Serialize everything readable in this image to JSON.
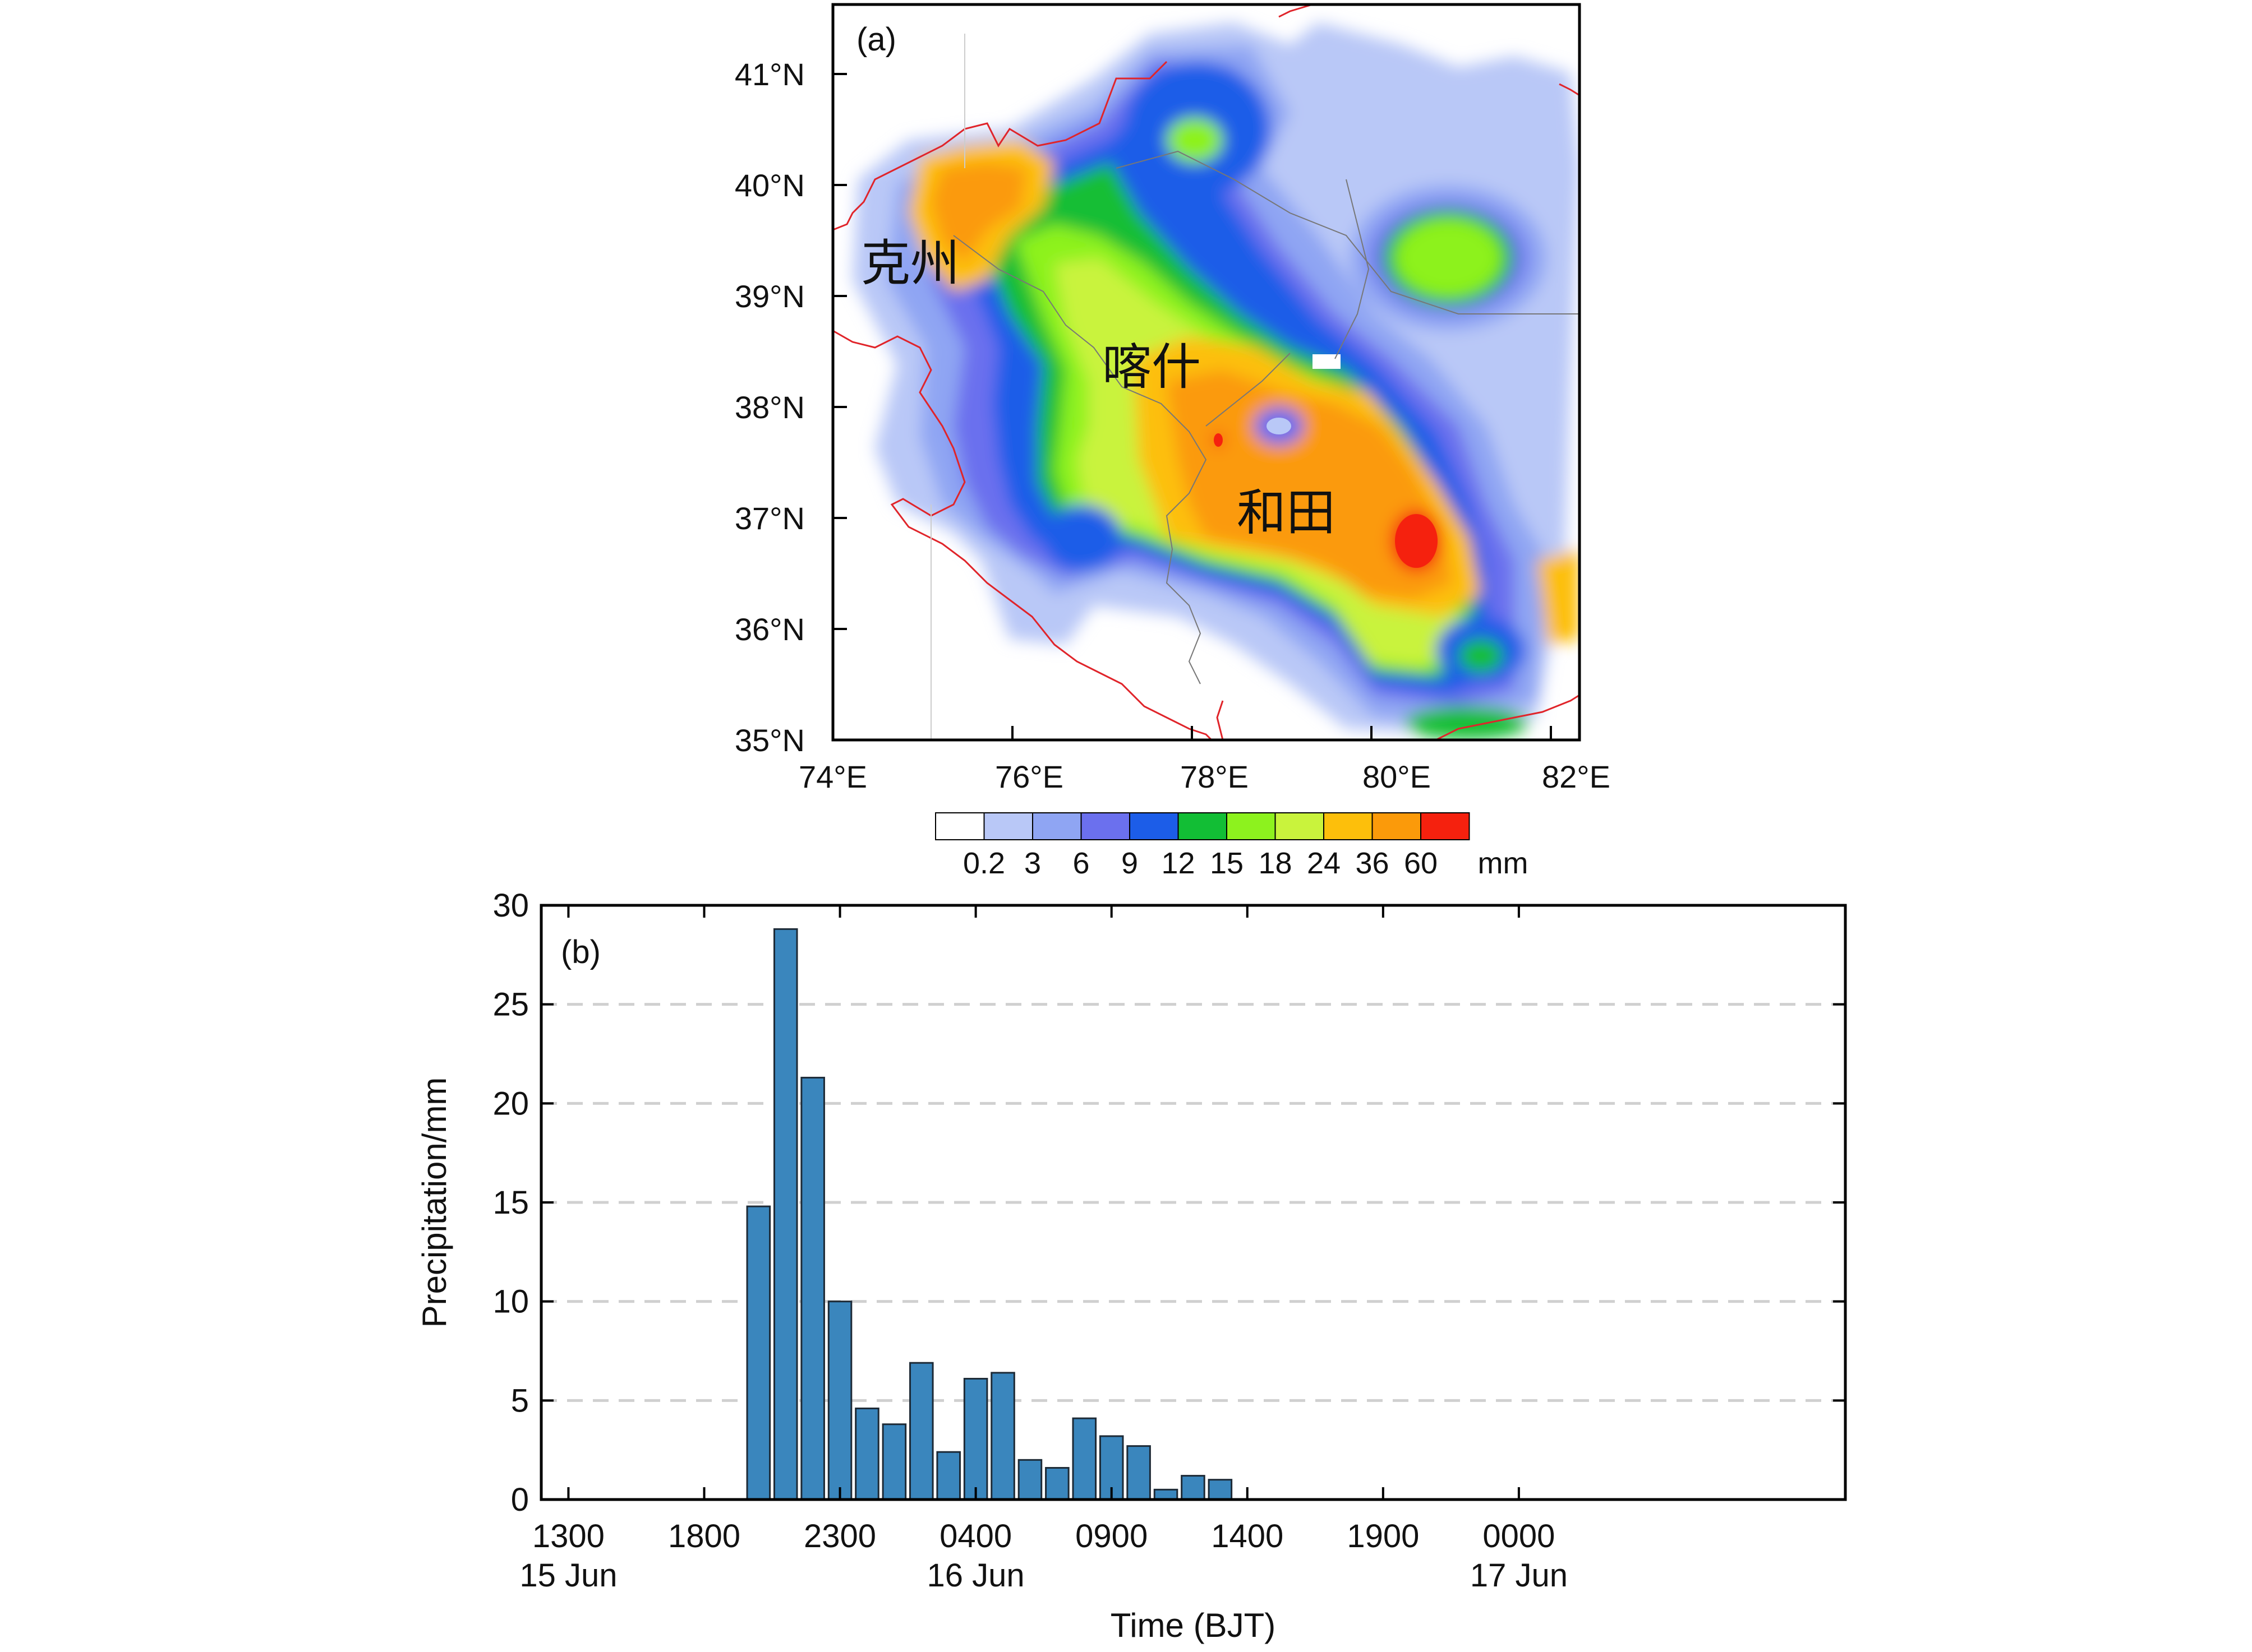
{
  "panel_a": {
    "label": "(a)",
    "lat_ticks": [
      "35°N",
      "36°N",
      "37°N",
      "38°N",
      "39°N",
      "40°N",
      "41°N"
    ],
    "lon_ticks": [
      "74°E",
      "76°E",
      "78°E",
      "80°E",
      "82°E"
    ],
    "place_labels": [
      "克州",
      "喀什",
      "和田"
    ],
    "colorbar": {
      "colors": [
        "#ffffff",
        "#b9c8f7",
        "#8fa5f3",
        "#6b70ee",
        "#1c5de8",
        "#12be35",
        "#8df21e",
        "#c9f33c",
        "#fdbf0b",
        "#fb9a0a",
        "#f5210e"
      ],
      "tick_labels": [
        "0.2",
        "3",
        "6",
        "9",
        "12",
        "15",
        "18",
        "24",
        "36",
        "60"
      ],
      "unit": "mm"
    },
    "border_color": "#e0242a"
  },
  "chart_data": {
    "type": "bar",
    "panel_label": "(b)",
    "xlabel": "Time (BJT)",
    "ylabel": "Precipitation/mm",
    "ylim": [
      0,
      30
    ],
    "yticks": [
      "0",
      "5",
      "10",
      "15",
      "20",
      "25",
      "30"
    ],
    "grid": "horizontal dashed",
    "bar_color": "#3a86bd",
    "xtick_labels": [
      {
        "time": "1300",
        "date": "15 Jun"
      },
      {
        "time": "1800",
        "date": ""
      },
      {
        "time": "2300",
        "date": ""
      },
      {
        "time": "0400",
        "date": "16 Jun"
      },
      {
        "time": "0900",
        "date": ""
      },
      {
        "time": "1400",
        "date": ""
      },
      {
        "time": "1900",
        "date": ""
      },
      {
        "time": "0000",
        "date": "17 Jun"
      }
    ],
    "x_hours_from_1300_15Jun": [
      7,
      8,
      9,
      10,
      11,
      12,
      13,
      14,
      15,
      16,
      17,
      18,
      19,
      20,
      21,
      22,
      23,
      24,
      25
    ],
    "values": [
      14.8,
      28.8,
      21.3,
      10.0,
      4.6,
      3.8,
      6.9,
      2.4,
      6.1,
      6.4,
      2.0,
      1.6,
      4.1,
      3.2,
      2.7,
      0.5,
      1.2,
      1.0,
      0.0
    ]
  }
}
